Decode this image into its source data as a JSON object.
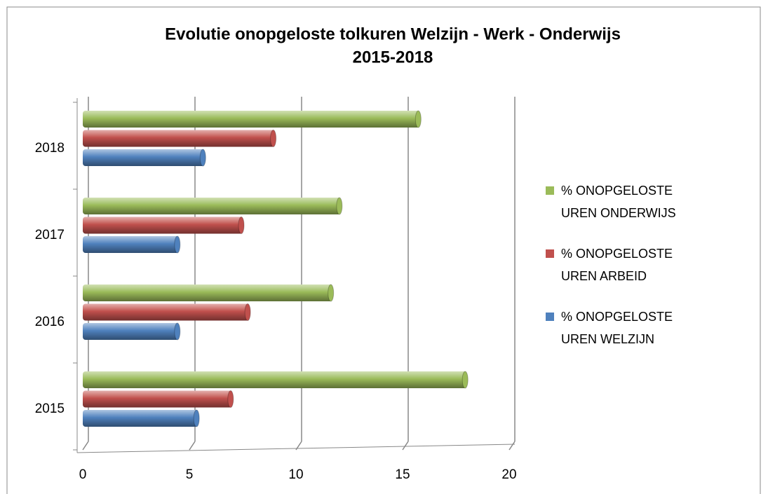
{
  "chart_data": {
    "type": "bar",
    "orientation": "horizontal",
    "title": "Evolutie onopgeloste tolkuren Welzijn - Werk - Onderwijs",
    "subtitle": "2015-2018",
    "categories": [
      "2015",
      "2016",
      "2017",
      "2018"
    ],
    "series": [
      {
        "name": "% ONOPGELOSTE UREN WELZIJN",
        "color": "#4f81bd",
        "values": [
          5.4,
          4.5,
          4.5,
          5.7
        ]
      },
      {
        "name": "% ONOPGELOSTE UREN ARBEID",
        "color": "#c0504d",
        "values": [
          7.0,
          7.8,
          7.5,
          9.0
        ]
      },
      {
        "name": "% ONOPGELOSTE UREN ONDERWIJS",
        "color": "#9bbb59",
        "values": [
          18.0,
          11.7,
          12.1,
          15.8
        ]
      }
    ],
    "xlim": [
      0,
      20
    ],
    "xticks": [
      0,
      5,
      10,
      15,
      20
    ],
    "grid": true,
    "legend": "right"
  }
}
